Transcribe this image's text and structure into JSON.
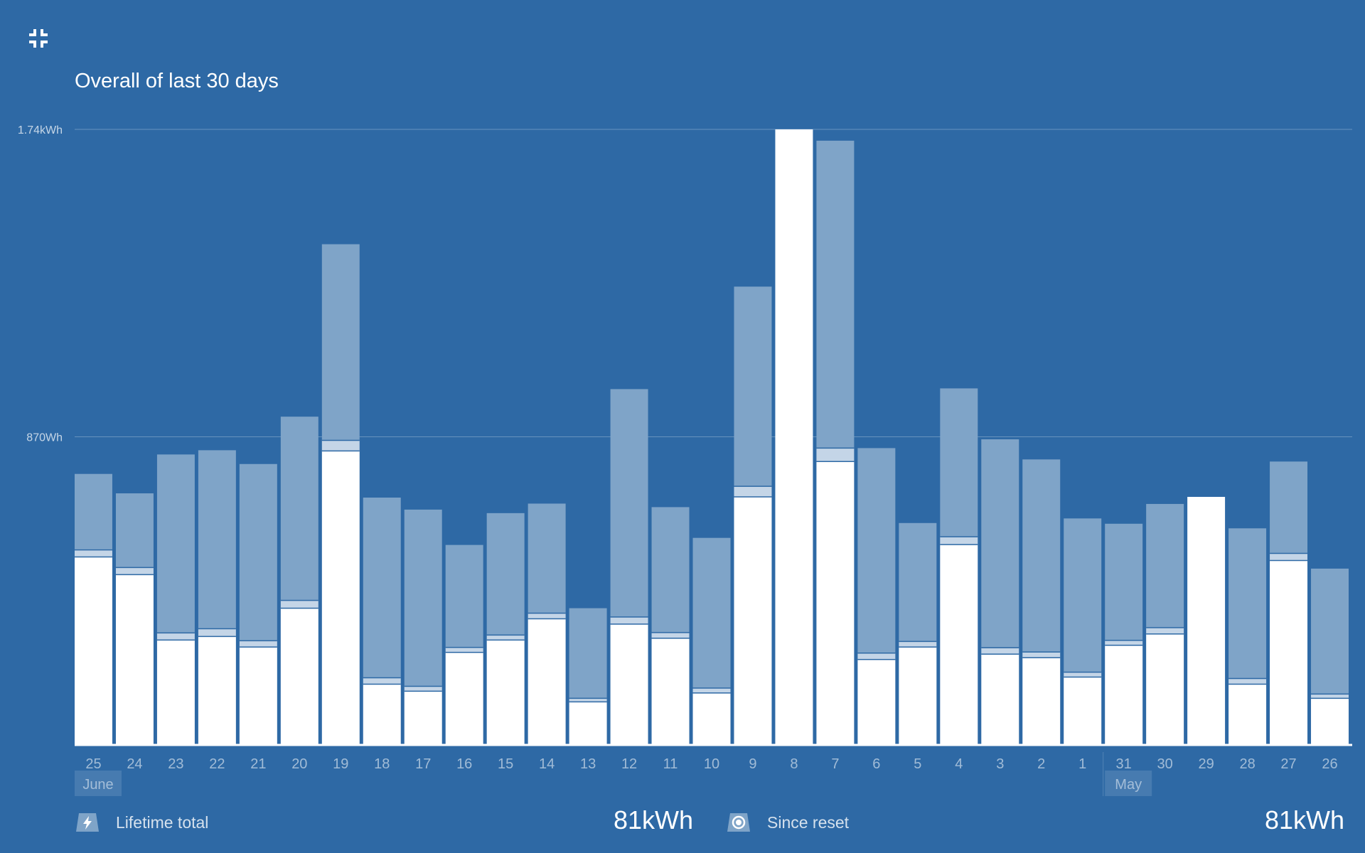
{
  "header": {
    "collapse_icon": "collapse-fullscreen-icon",
    "title": "Overall of last 30 days"
  },
  "colors": {
    "background": "#2e69a5",
    "bar_top": "#7fa4c8",
    "bar_middle": "#c4d5e7",
    "bar_bottom": "#ffffff"
  },
  "legend": [
    {
      "icon": "lightning-icon",
      "label": "Lifetime total",
      "value": "81kWh"
    },
    {
      "icon": "target-reset-icon",
      "label": "Since reset",
      "value": "81kWh"
    }
  ],
  "chart_data": {
    "type": "bar",
    "stacked": true,
    "title": "Overall of last 30 days",
    "ylim": [
      0,
      1740
    ],
    "y_unit": "Wh",
    "y_ticks": [
      {
        "value": 870,
        "label": "870Wh"
      },
      {
        "value": 1740,
        "label": "1.74kWh"
      }
    ],
    "categories": [
      "25",
      "24",
      "23",
      "22",
      "21",
      "20",
      "19",
      "18",
      "17",
      "16",
      "15",
      "14",
      "13",
      "12",
      "11",
      "10",
      "9",
      "8",
      "7",
      "6",
      "5",
      "4",
      "3",
      "2",
      "1",
      "31",
      "30",
      "29",
      "28",
      "27",
      "26"
    ],
    "month_markers": [
      {
        "label": "June",
        "at_category_index": 0
      },
      {
        "label": "May",
        "at_category_index": 25
      }
    ],
    "series": [
      {
        "name": "Lower segment (white)",
        "values": [
          530,
          480,
          295,
          305,
          275,
          385,
          830,
          170,
          150,
          260,
          295,
          355,
          120,
          340,
          300,
          145,
          700,
          1740,
          800,
          240,
          275,
          565,
          255,
          245,
          190,
          280,
          312,
          700,
          170,
          520,
          130
        ]
      },
      {
        "name": "Middle segment (light)",
        "values": [
          20,
          20,
          20,
          22,
          18,
          22,
          30,
          18,
          14,
          14,
          14,
          16,
          10,
          20,
          16,
          14,
          30,
          0,
          38,
          18,
          16,
          22,
          18,
          16,
          14,
          14,
          18,
          0,
          16,
          20,
          12
        ]
      },
      {
        "name": "Upper segment (blue)",
        "values": [
          215,
          210,
          505,
          505,
          500,
          520,
          555,
          510,
          500,
          290,
          345,
          310,
          255,
          645,
          355,
          425,
          565,
          0,
          870,
          580,
          335,
          420,
          590,
          545,
          435,
          330,
          350,
          0,
          425,
          260,
          355
        ]
      }
    ]
  }
}
